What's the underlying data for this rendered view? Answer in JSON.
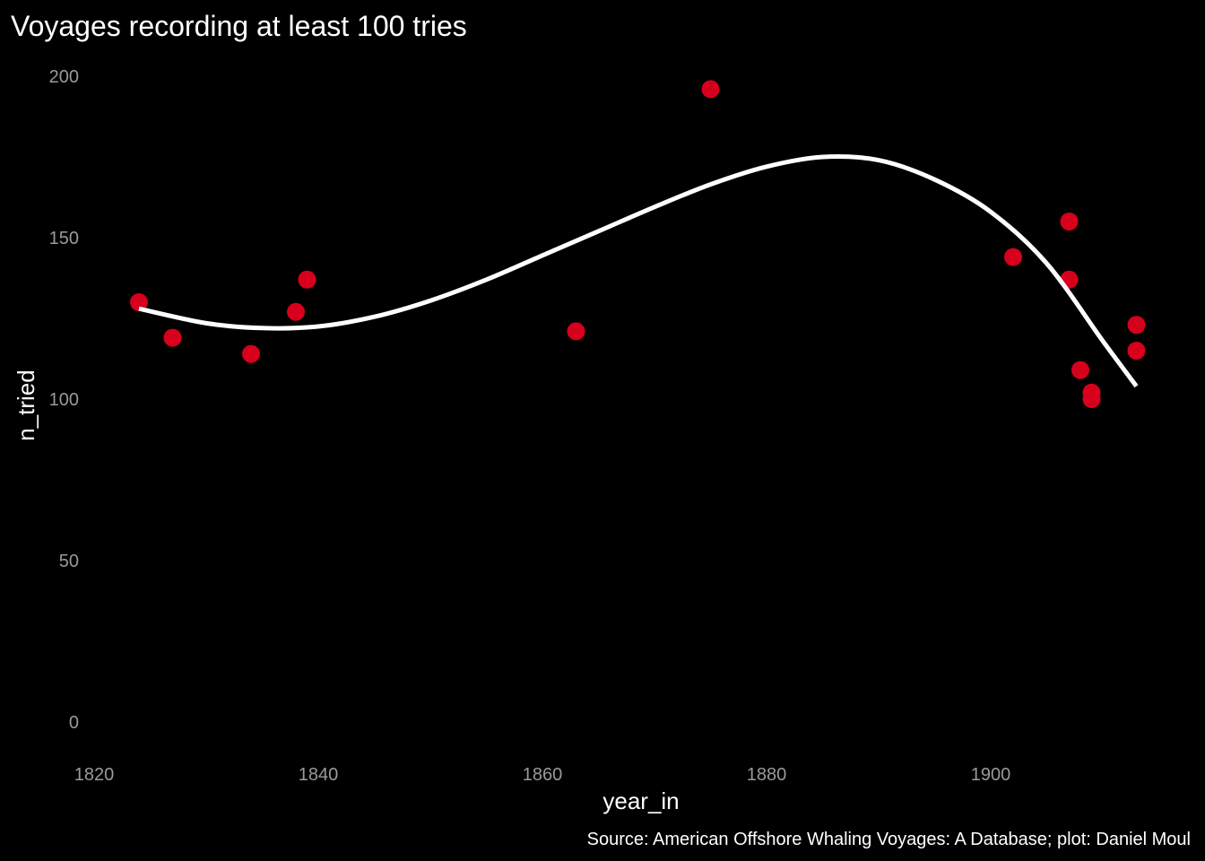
{
  "chart_data": {
    "type": "scatter",
    "title": "Voyages recording at least 100 tries",
    "xlabel": "year_in",
    "ylabel": "n_tried",
    "caption": "Source: American Offshore Whaling Voyages: A Database; plot: Daniel Moul",
    "xlim": [
      1818,
      1914
    ],
    "ylim": [
      -10,
      208
    ],
    "x_ticks": [
      1820,
      1840,
      1860,
      1880,
      1900
    ],
    "y_ticks": [
      0,
      50,
      100,
      150,
      200
    ],
    "grid": false,
    "legend": "none",
    "point_color": "#d7001c",
    "line_color": "#ffffff",
    "background": "#000000",
    "points": [
      {
        "x": 1824,
        "y": 130
      },
      {
        "x": 1827,
        "y": 119
      },
      {
        "x": 1834,
        "y": 114
      },
      {
        "x": 1838,
        "y": 127
      },
      {
        "x": 1839,
        "y": 137
      },
      {
        "x": 1863,
        "y": 121
      },
      {
        "x": 1875,
        "y": 196
      },
      {
        "x": 1902,
        "y": 144
      },
      {
        "x": 1907,
        "y": 155
      },
      {
        "x": 1907,
        "y": 137
      },
      {
        "x": 1908,
        "y": 109
      },
      {
        "x": 1909,
        "y": 102
      },
      {
        "x": 1909,
        "y": 100
      },
      {
        "x": 1913,
        "y": 123
      },
      {
        "x": 1913,
        "y": 115
      }
    ],
    "smooth_line": [
      {
        "x": 1824,
        "y": 128
      },
      {
        "x": 1830,
        "y": 123.5
      },
      {
        "x": 1835,
        "y": 122
      },
      {
        "x": 1840,
        "y": 122.5
      },
      {
        "x": 1845,
        "y": 125.5
      },
      {
        "x": 1850,
        "y": 130.5
      },
      {
        "x": 1855,
        "y": 137
      },
      {
        "x": 1860,
        "y": 144.5
      },
      {
        "x": 1865,
        "y": 152
      },
      {
        "x": 1870,
        "y": 159.5
      },
      {
        "x": 1875,
        "y": 166.5
      },
      {
        "x": 1880,
        "y": 172
      },
      {
        "x": 1885,
        "y": 175
      },
      {
        "x": 1890,
        "y": 174
      },
      {
        "x": 1895,
        "y": 168
      },
      {
        "x": 1900,
        "y": 158
      },
      {
        "x": 1905,
        "y": 142
      },
      {
        "x": 1910,
        "y": 118
      },
      {
        "x": 1913,
        "y": 104
      }
    ]
  }
}
